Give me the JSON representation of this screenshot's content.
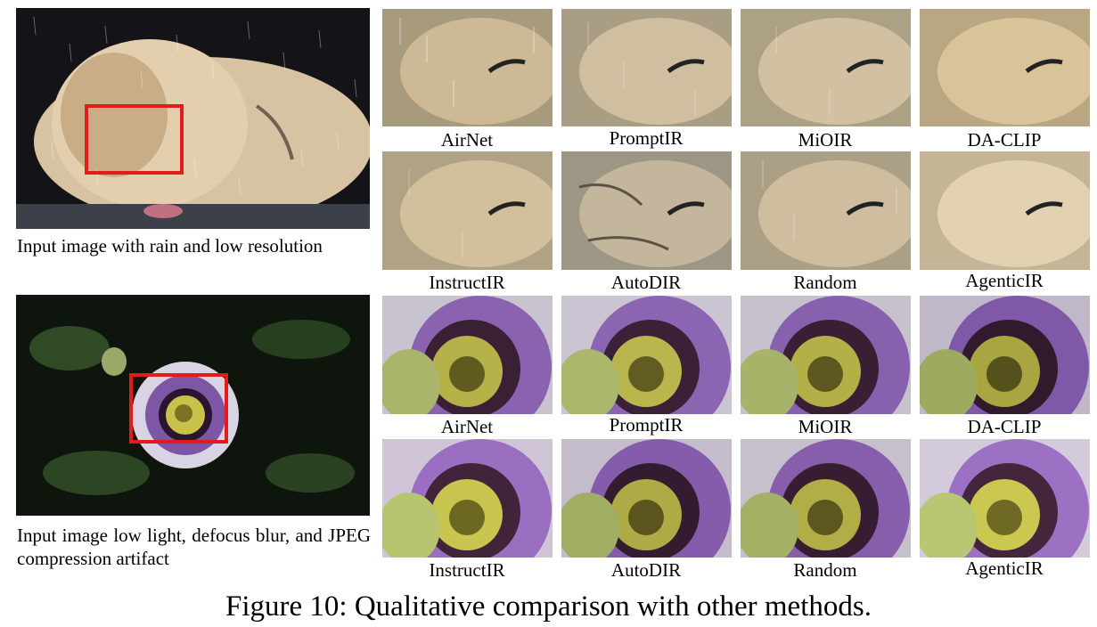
{
  "top": {
    "input_caption": "Input image with rain and low resolution",
    "row1_labels": [
      "AirNet",
      "PromptIR",
      "MiOIR",
      "DA-CLIP"
    ],
    "row2_labels": [
      "InstructIR",
      "AutoDIR",
      "Random",
      "AgenticIR"
    ]
  },
  "bottom": {
    "input_caption": "Input image low light, defocus blur, and JPEG compression artifact",
    "row1_labels": [
      "AirNet",
      "PromptIR",
      "MiOIR",
      "DA-CLIP"
    ],
    "row2_labels": [
      "InstructIR",
      "AutoDIR",
      "Random",
      "AgenticIR"
    ]
  },
  "figure_caption": "Figure 10: Qualitative comparison with other methods.",
  "colors": {
    "highlight_box": "#e31b1b",
    "lion_fur": "#d9c3a0",
    "flower_purple": "#7d54a8",
    "flower_yellow": "#c9c24a"
  }
}
